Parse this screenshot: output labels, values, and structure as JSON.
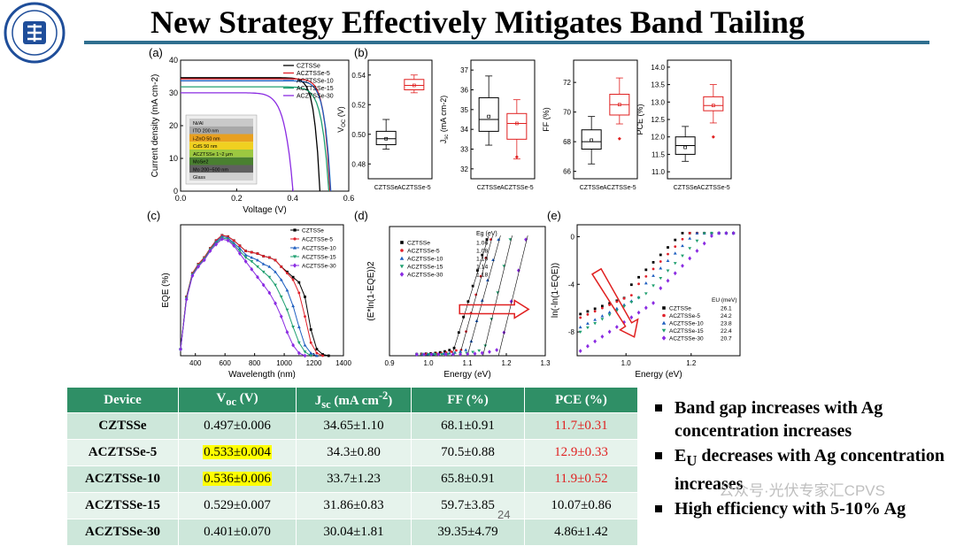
{
  "slide": {
    "title": "New Strategy Effectively Mitigates Band Tailing",
    "page_number": "24",
    "watermark": "公众号·光伏专家汇CPVS",
    "colors": {
      "title_rule": "#2f6f8f",
      "table_header": "#2f8f66",
      "highlight": "#ffff00",
      "pce_red": "#e02020"
    }
  },
  "logo": {
    "icon": "university-seal-icon",
    "color": "#1f4e9a"
  },
  "table": {
    "headers": [
      "Device",
      "Voc (V)",
      "Jsc (mA cm-2)",
      "FF (%)",
      "PCE (%)"
    ],
    "header_parts": {
      "voc_main": "V",
      "voc_sub": "oc",
      "voc_unit": " (V)",
      "jsc_main": "J",
      "jsc_sub": "sc",
      "jsc_unit": " (mA cm",
      "jsc_sup": "-2",
      "jsc_close": ")"
    },
    "rows": [
      {
        "device": "CZTSSe",
        "voc": "0.497±0.006",
        "jsc": "34.65±1.10",
        "ff": "68.1±0.91",
        "pce": "11.7±0.31"
      },
      {
        "device": "ACZTSSe-5",
        "voc": "0.533±0.004",
        "jsc": "34.3±0.80",
        "ff": "70.5±0.88",
        "pce": "12.9±0.33"
      },
      {
        "device": "ACZTSSe-10",
        "voc": "0.536±0.006",
        "jsc": "33.7±1.23",
        "ff": "65.8±0.91",
        "pce": "11.9±0.52"
      },
      {
        "device": "ACZTSSe-15",
        "voc": "0.529±0.007",
        "jsc": "31.86±0.83",
        "ff": "59.7±3.85",
        "pce": "10.07±0.86"
      },
      {
        "device": "ACZTSSe-30",
        "voc": "0.401±0.070",
        "jsc": "30.04±1.81",
        "ff": "39.35±4.79",
        "pce": "4.86±1.42"
      }
    ]
  },
  "bullets": {
    "b1": "Band gap increases with Ag concentration increases",
    "b2_main": "E",
    "b2_sub": "U",
    "b2_rest": " decreases with Ag concentration increases",
    "b3": "High efficiency with 5-10% Ag"
  },
  "chart_data": [
    {
      "panel": "(a)",
      "type": "line",
      "xlabel": "Voltage (V)",
      "ylabel": "Current density (mA cm-2)",
      "xlim": [
        0.0,
        0.6
      ],
      "ylim": [
        0,
        40
      ],
      "xticks": [
        0.0,
        0.2,
        0.4,
        0.6
      ],
      "yticks": [
        0,
        10,
        20,
        30,
        40
      ],
      "series": [
        {
          "name": "CZTSSe",
          "color": "#000000",
          "jsc": 34.65,
          "voc": 0.497,
          "ff": 68.1
        },
        {
          "name": "ACZTSSe-5",
          "color": "#e0202a",
          "jsc": 34.3,
          "voc": 0.533,
          "ff": 70.5
        },
        {
          "name": "ACZTSSe-10",
          "color": "#1f5fc0",
          "jsc": 33.7,
          "voc": 0.536,
          "ff": 65.8
        },
        {
          "name": "ACZTSSe-15",
          "color": "#20a070",
          "jsc": 31.86,
          "voc": 0.529,
          "ff": 59.7
        },
        {
          "name": "ACZTSSe-30",
          "color": "#8a2be2",
          "jsc": 30.04,
          "voc": 0.401,
          "ff": 39.35
        }
      ],
      "inset": {
        "layers": [
          {
            "label": "Ni/Al",
            "color": "#c9c9c9"
          },
          {
            "label": "ITO 200 nm",
            "color": "#a8a8a8"
          },
          {
            "label": "i-ZnO 50 nm",
            "color": "#e8a020"
          },
          {
            "label": "CdS 50 nm",
            "color": "#f0d020"
          },
          {
            "label": "ACZTSSe 1~2 μm",
            "color": "#9cc840"
          },
          {
            "label": "MoSe2",
            "color": "#4a8030"
          },
          {
            "label": "Mo 200~500 nm",
            "color": "#606060"
          },
          {
            "label": "Glass",
            "color": "#d0d0d0"
          }
        ]
      }
    },
    {
      "panel": "(b)",
      "type": "box",
      "categories": [
        "CZTSSe",
        "ACZTSSe-5"
      ],
      "colors": [
        "#000000",
        "#e02020"
      ],
      "plots": [
        {
          "ylabel": "VOC (V)",
          "ylabel_main": "V",
          "ylabel_sub": "OC",
          "ylabel_rest": " (V)",
          "ylim": [
            0.47,
            0.55
          ],
          "yticks": [
            0.48,
            0.5,
            0.52,
            0.54
          ],
          "tick_labels": [
            "0.48",
            "0.50",
            "0.52",
            "0.54"
          ],
          "boxes": [
            {
              "min": 0.49,
              "q1": 0.493,
              "median": 0.497,
              "q3": 0.502,
              "max": 0.51,
              "mean": 0.497
            },
            {
              "min": 0.528,
              "q1": 0.53,
              "median": 0.533,
              "q3": 0.537,
              "max": 0.54,
              "mean": 0.533
            }
          ]
        },
        {
          "ylabel": "Jsc (mA cm-2)",
          "ylabel_main": "J",
          "ylabel_sub": "sc",
          "ylabel_rest": " (mA cm-2)",
          "ylim": [
            31.5,
            37.5
          ],
          "yticks": [
            32,
            33,
            34,
            35,
            36,
            37
          ],
          "tick_labels": [
            "32",
            "33",
            "34",
            "35",
            "36",
            "37"
          ],
          "boxes": [
            {
              "min": 33.2,
              "q1": 33.9,
              "median": 34.5,
              "q3": 35.6,
              "max": 36.7,
              "mean": 34.65
            },
            {
              "min": 32.5,
              "q1": 33.5,
              "median": 34.3,
              "q3": 34.8,
              "max": 35.5,
              "mean": 34.3,
              "outliers": [
                32.6
              ]
            }
          ]
        },
        {
          "ylabel": "FF (%)",
          "ylabel_main": "FF (%)",
          "ylabel_sub": "",
          "ylabel_rest": "",
          "ylim": [
            65.5,
            73.5
          ],
          "yticks": [
            66,
            68,
            70,
            72
          ],
          "tick_labels": [
            "66",
            "68",
            "70",
            "72"
          ],
          "boxes": [
            {
              "min": 66.5,
              "q1": 67.5,
              "median": 68.0,
              "q3": 68.8,
              "max": 69.7,
              "mean": 68.1
            },
            {
              "min": 69.2,
              "q1": 69.8,
              "median": 70.5,
              "q3": 71.2,
              "max": 72.3,
              "mean": 70.5,
              "outliers": [
                68.2
              ]
            }
          ]
        },
        {
          "ylabel": "PCE (%)",
          "ylabel_main": "PCE (%)",
          "ylabel_sub": "",
          "ylabel_rest": "",
          "ylim": [
            10.8,
            14.2
          ],
          "yticks": [
            11.0,
            11.5,
            12.0,
            12.5,
            13.0,
            13.5,
            14.0
          ],
          "tick_labels": [
            "11.0",
            "11.5",
            "12.0",
            "12.5",
            "13.0",
            "13.5",
            "14.0"
          ],
          "boxes": [
            {
              "min": 11.3,
              "q1": 11.5,
              "median": 11.75,
              "q3": 12.0,
              "max": 12.3,
              "mean": 11.7
            },
            {
              "min": 12.4,
              "q1": 12.75,
              "median": 12.9,
              "q3": 13.15,
              "max": 13.5,
              "mean": 12.9,
              "outliers": [
                12.0
              ]
            }
          ]
        }
      ]
    },
    {
      "panel": "(c)",
      "type": "line",
      "xlabel": "Wavelength (nm)",
      "ylabel": "EQE (%)",
      "xlim": [
        300,
        1400
      ],
      "ylim": [
        0,
        100
      ],
      "xticks": [
        400,
        600,
        800,
        1000,
        1200,
        1400
      ],
      "series": [
        {
          "name": "CZTSSe",
          "color": "#000000",
          "points": [
            [
              300,
              5
            ],
            [
              340,
              45
            ],
            [
              380,
              63
            ],
            [
              420,
              70
            ],
            [
              460,
              75
            ],
            [
              500,
              82
            ],
            [
              540,
              88
            ],
            [
              580,
              92
            ],
            [
              620,
              91
            ],
            [
              660,
              88
            ],
            [
              700,
              84
            ],
            [
              740,
              80
            ],
            [
              780,
              79
            ],
            [
              820,
              78
            ],
            [
              860,
              76
            ],
            [
              900,
              75
            ],
            [
              940,
              73
            ],
            [
              980,
              68
            ],
            [
              1020,
              64
            ],
            [
              1060,
              60
            ],
            [
              1100,
              56
            ],
            [
              1140,
              45
            ],
            [
              1180,
              20
            ],
            [
              1220,
              5
            ],
            [
              1260,
              1
            ],
            [
              1300,
              0
            ]
          ]
        },
        {
          "name": "ACZTSSe-5",
          "color": "#e0202a",
          "points": [
            [
              300,
              5
            ],
            [
              340,
              45
            ],
            [
              380,
              63
            ],
            [
              420,
              70
            ],
            [
              460,
              75
            ],
            [
              500,
              82
            ],
            [
              540,
              88
            ],
            [
              580,
              92
            ],
            [
              620,
              91
            ],
            [
              660,
              88
            ],
            [
              700,
              84
            ],
            [
              740,
              80
            ],
            [
              780,
              79
            ],
            [
              820,
              78
            ],
            [
              860,
              76
            ],
            [
              900,
              75
            ],
            [
              940,
              73
            ],
            [
              980,
              68
            ],
            [
              1020,
              63
            ],
            [
              1060,
              58
            ],
            [
              1100,
              48
            ],
            [
              1140,
              30
            ],
            [
              1180,
              10
            ],
            [
              1220,
              2
            ],
            [
              1260,
              0
            ]
          ]
        },
        {
          "name": "ACZTSSe-10",
          "color": "#1f5fc0",
          "points": [
            [
              300,
              5
            ],
            [
              340,
              44
            ],
            [
              380,
              62
            ],
            [
              420,
              69
            ],
            [
              460,
              74
            ],
            [
              500,
              81
            ],
            [
              540,
              87
            ],
            [
              580,
              91
            ],
            [
              620,
              90
            ],
            [
              660,
              86
            ],
            [
              700,
              82
            ],
            [
              740,
              77
            ],
            [
              780,
              75
            ],
            [
              820,
              73
            ],
            [
              860,
              70
            ],
            [
              900,
              68
            ],
            [
              940,
              64
            ],
            [
              980,
              58
            ],
            [
              1020,
              50
            ],
            [
              1060,
              38
            ],
            [
              1100,
              22
            ],
            [
              1140,
              8
            ],
            [
              1180,
              2
            ],
            [
              1220,
              0
            ]
          ]
        },
        {
          "name": "ACZTSSe-15",
          "color": "#20a070",
          "points": [
            [
              300,
              5
            ],
            [
              340,
              44
            ],
            [
              380,
              62
            ],
            [
              420,
              69
            ],
            [
              460,
              74
            ],
            [
              500,
              81
            ],
            [
              540,
              86
            ],
            [
              580,
              90
            ],
            [
              620,
              89
            ],
            [
              660,
              85
            ],
            [
              700,
              80
            ],
            [
              740,
              75
            ],
            [
              780,
              72
            ],
            [
              820,
              68
            ],
            [
              860,
              64
            ],
            [
              900,
              60
            ],
            [
              940,
              54
            ],
            [
              980,
              45
            ],
            [
              1020,
              35
            ],
            [
              1060,
              22
            ],
            [
              1100,
              10
            ],
            [
              1140,
              3
            ],
            [
              1180,
              0
            ]
          ]
        },
        {
          "name": "ACZTSSe-30",
          "color": "#8a2be2",
          "points": [
            [
              300,
              5
            ],
            [
              340,
              43
            ],
            [
              380,
              61
            ],
            [
              420,
              68
            ],
            [
              460,
              73
            ],
            [
              500,
              80
            ],
            [
              540,
              85
            ],
            [
              580,
              89
            ],
            [
              620,
              88
            ],
            [
              660,
              84
            ],
            [
              700,
              78
            ],
            [
              740,
              72
            ],
            [
              780,
              66
            ],
            [
              820,
              60
            ],
            [
              860,
              54
            ],
            [
              900,
              48
            ],
            [
              940,
              40
            ],
            [
              980,
              30
            ],
            [
              1020,
              18
            ],
            [
              1060,
              8
            ],
            [
              1100,
              2
            ],
            [
              1140,
              0
            ]
          ]
        }
      ]
    },
    {
      "panel": "(d)",
      "type": "scatter",
      "xlabel": "Energy (eV)",
      "ylabel": "(E*ln(1-EQE))2",
      "xlim": [
        0.9,
        1.3
      ],
      "ylim": [
        0,
        1.0
      ],
      "xticks": [
        0.9,
        1.0,
        1.1,
        1.2,
        1.3
      ],
      "yticks": [
        0.0,
        0.2,
        0.4,
        0.6,
        0.8
      ],
      "legend_title": "Eg (eV)",
      "series": [
        {
          "name": "CZTSSe",
          "eg": "1.06",
          "color": "#000000",
          "marker": "square",
          "x0": 1.06,
          "xend": 1.15
        },
        {
          "name": "ACZTSSe-5",
          "eg": "1.08",
          "color": "#e0202a",
          "marker": "circle",
          "x0": 1.08,
          "xend": 1.16
        },
        {
          "name": "ACZTSSe-10",
          "eg": "1.10",
          "color": "#1f5fc0",
          "marker": "triangle",
          "x0": 1.1,
          "xend": 1.18
        },
        {
          "name": "ACZTSSe-15",
          "eg": "1.14",
          "color": "#20a070",
          "marker": "triangle-down",
          "x0": 1.14,
          "xend": 1.21
        },
        {
          "name": "ACZTSSe-30",
          "eg": "1.18",
          "color": "#8a2be2",
          "marker": "diamond",
          "x0": 1.18,
          "xend": 1.25
        }
      ]
    },
    {
      "panel": "(e)",
      "type": "scatter",
      "xlabel": "Energy (eV)",
      "ylabel": "ln(-ln(1-EQE))",
      "xlim": [
        0.85,
        1.35
      ],
      "ylim": [
        -10,
        1
      ],
      "xticks": [
        1.0,
        1.2
      ],
      "yticks": [
        0,
        -4,
        -8
      ],
      "legend_title": "EU (meV)",
      "series": [
        {
          "name": "CZTSSe",
          "eu": "26.1",
          "color": "#000000",
          "marker": "square"
        },
        {
          "name": "ACZTSSe-5",
          "eu": "24.2",
          "color": "#e0202a",
          "marker": "circle"
        },
        {
          "name": "ACZTSSe-10",
          "eu": "23.8",
          "color": "#1f5fc0",
          "marker": "triangle"
        },
        {
          "name": "ACZTSSe-15",
          "eu": "22.4",
          "color": "#20a070",
          "marker": "triangle-down"
        },
        {
          "name": "ACZTSSe-30",
          "eu": "20.7",
          "color": "#8a2be2",
          "marker": "diamond"
        }
      ]
    }
  ]
}
